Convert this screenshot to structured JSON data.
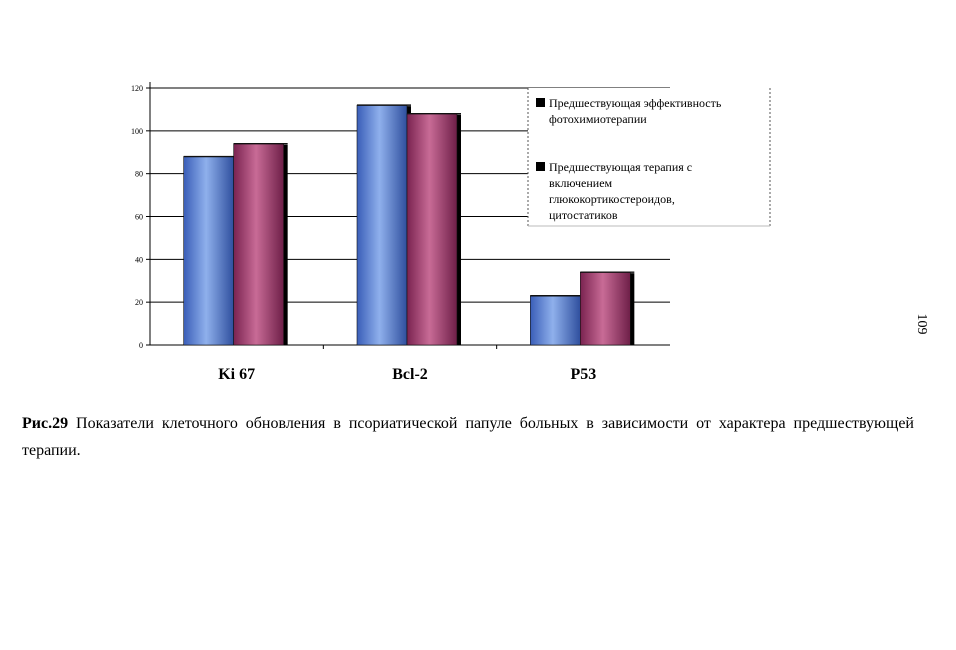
{
  "chart_data": {
    "type": "bar",
    "categories": [
      "Ki 67",
      "Bcl-2",
      "P53"
    ],
    "series": [
      {
        "name": "Предшествующая эффективность фотохимиотерапии",
        "color": "#5b7fcf",
        "values": [
          88,
          112,
          23
        ]
      },
      {
        "name": "Предшествующая терапия с включением глюкокортикостероидов, цитостатиков",
        "color": "#a84070",
        "values": [
          94,
          108,
          34
        ]
      }
    ],
    "ylim": [
      0,
      120
    ],
    "yticks": [
      "0",
      "20",
      "40",
      "60",
      "80",
      "100",
      "120"
    ],
    "grid": true,
    "legend_position": "top-right",
    "legend_lines": [
      [
        "Предшествующая эффективность",
        "фотохимиотерапии"
      ],
      [
        "Предшествующая терапия с",
        "включением",
        "глюкокортикостероидов,",
        "цитостатиков"
      ]
    ]
  },
  "caption": {
    "label": "Рис.29",
    "text": " Показатели клеточного обновления в псориатической папуле больных в зависимости от характера предшествующей терапии."
  },
  "page_number": "109"
}
